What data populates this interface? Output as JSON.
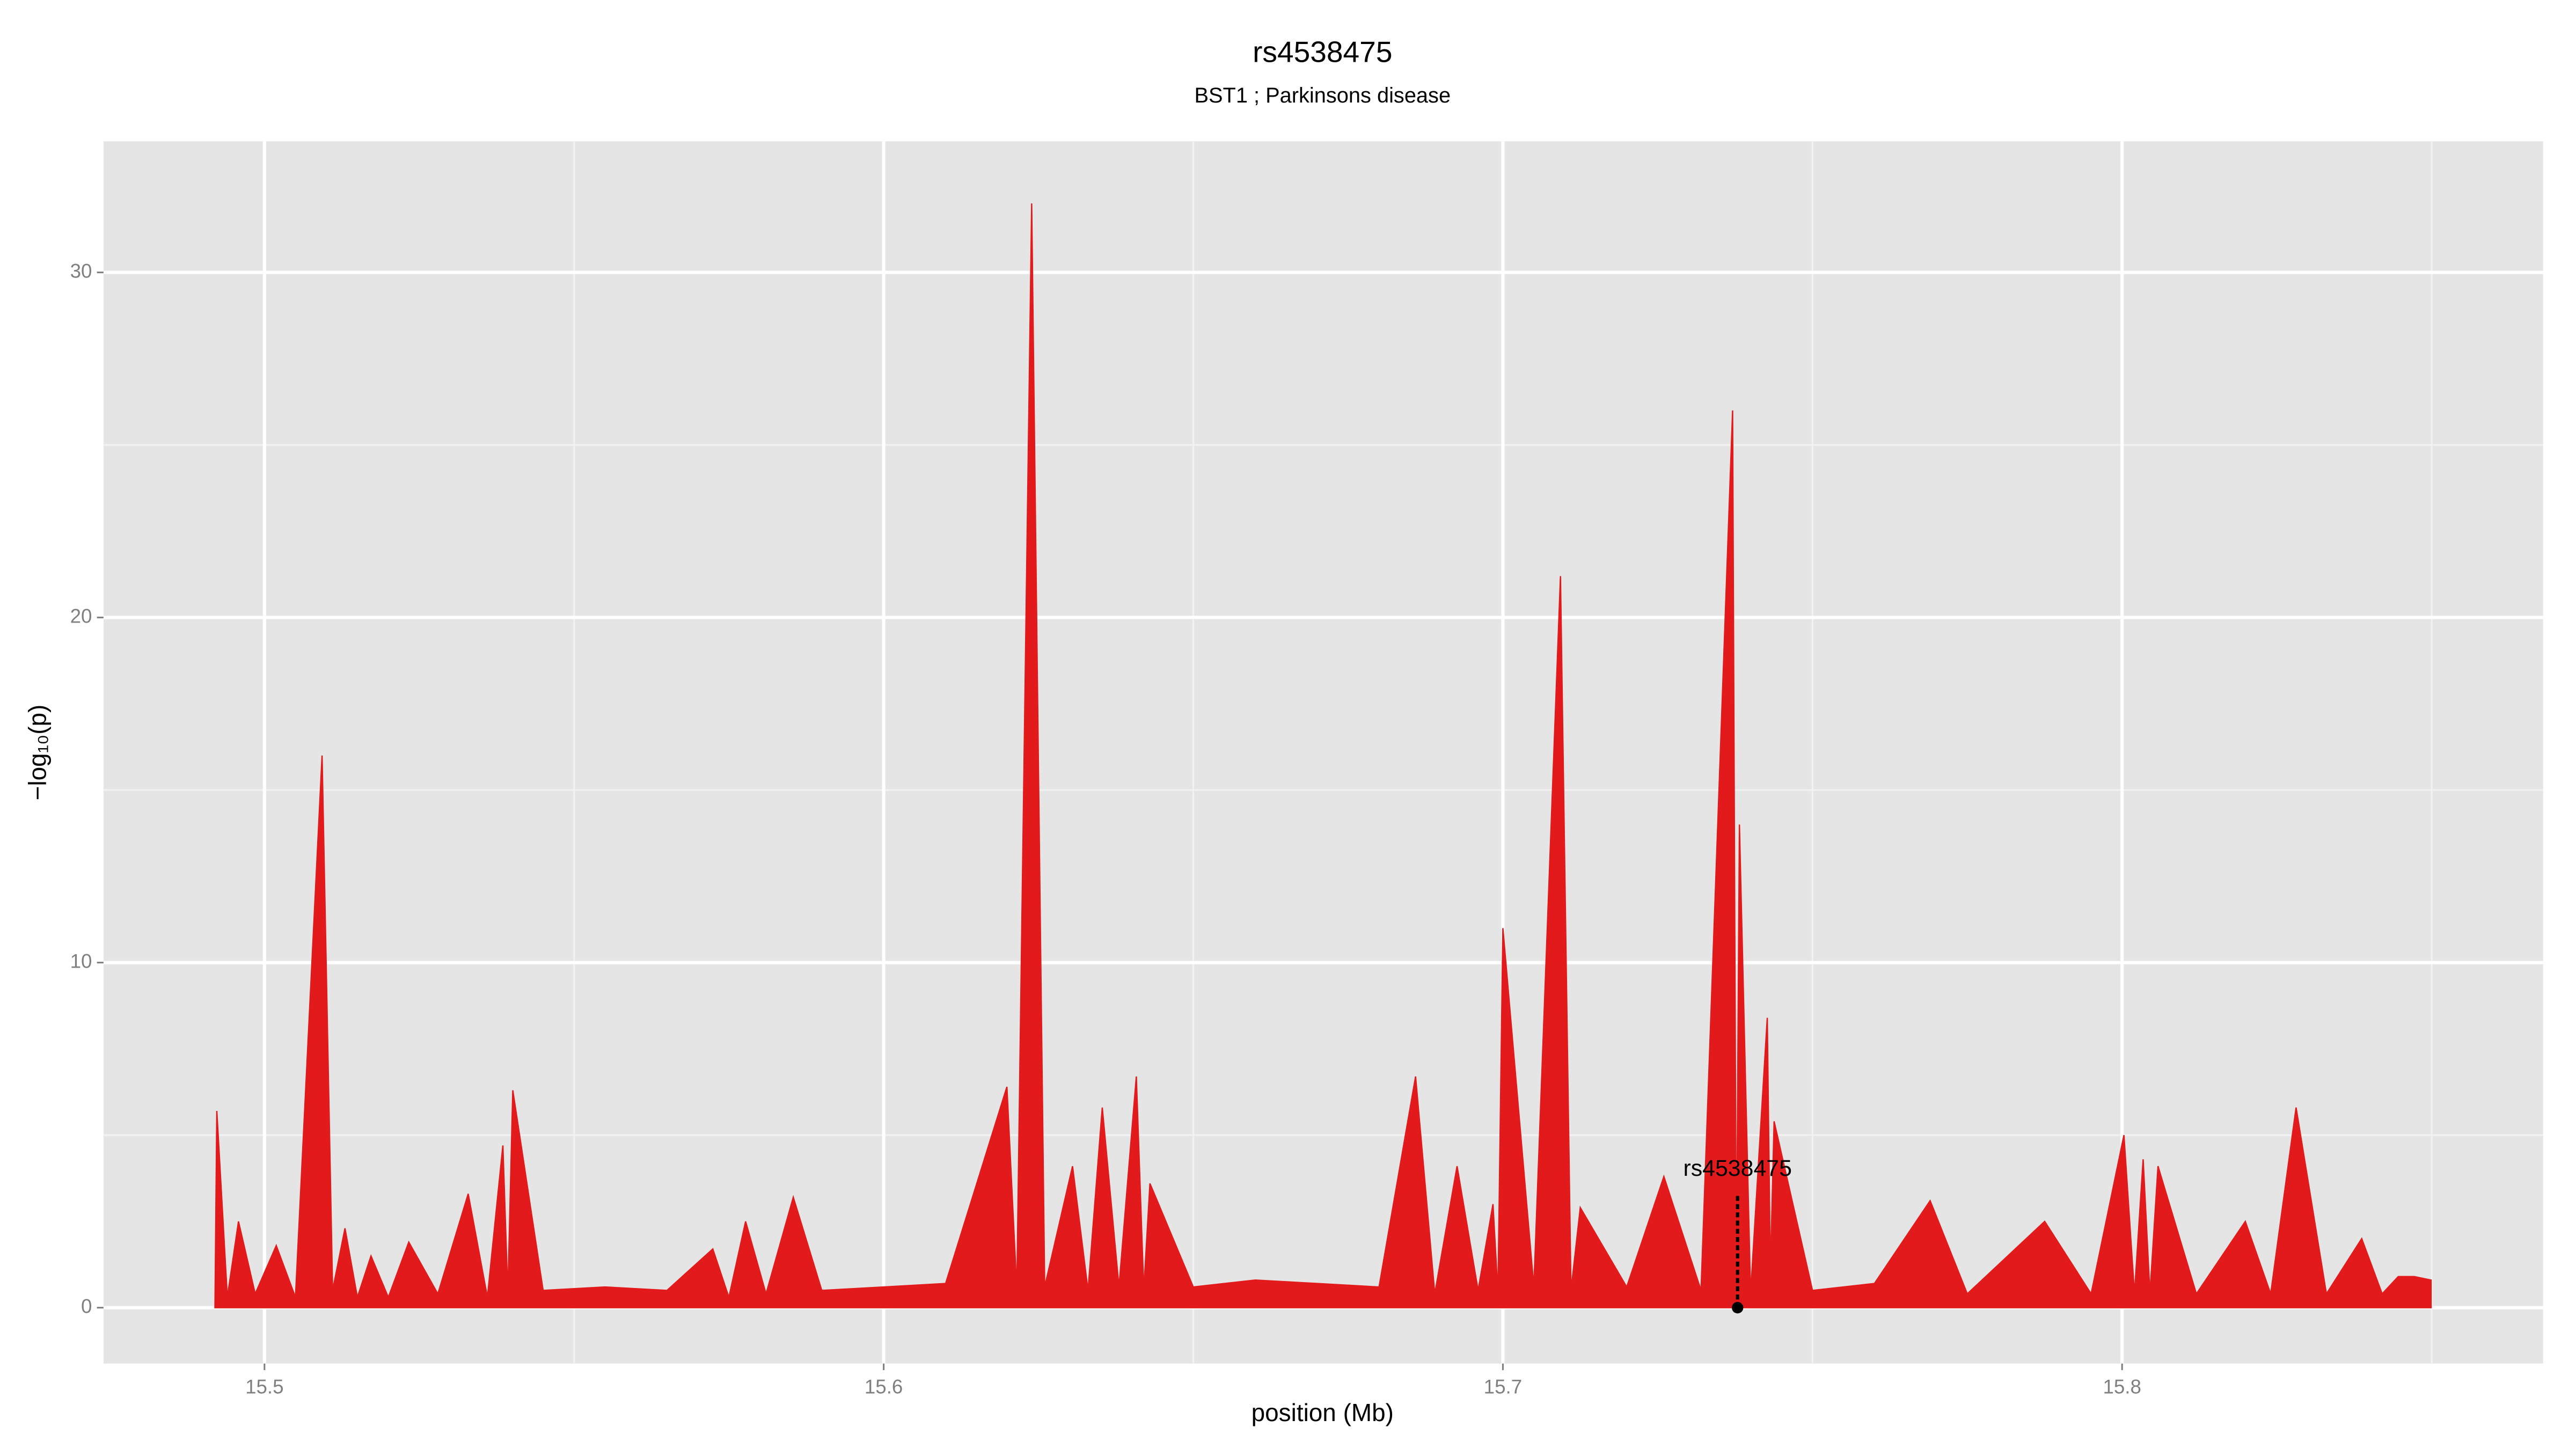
{
  "chart_data": {
    "type": "area",
    "title": "rs4538475",
    "subtitle": "BST1 ; Parkinsons disease",
    "xlabel": "position (Mb)",
    "ylabel": "−log₁₀(p)",
    "xlim": [
      15.474,
      15.868
    ],
    "ylim": [
      -1.62,
      33.8
    ],
    "xticks": [
      15.5,
      15.6,
      15.7,
      15.8
    ],
    "yticks": [
      0,
      10,
      20,
      30
    ],
    "x_minor_grid": [
      15.55,
      15.65,
      15.75,
      15.85
    ],
    "y_minor_grid": [
      5,
      15,
      25
    ],
    "grid": true,
    "background": "#e5e5e5",
    "x": [
      15.492,
      15.4923,
      15.494,
      15.4958,
      15.4985,
      15.5019,
      15.505,
      15.5093,
      15.511,
      15.513,
      15.515,
      15.5172,
      15.52,
      15.5233,
      15.528,
      15.5329,
      15.536,
      15.5385,
      15.5393,
      15.5401,
      15.545,
      15.555,
      15.565,
      15.5724,
      15.575,
      15.5777,
      15.581,
      15.5854,
      15.59,
      15.6,
      15.61,
      15.6199,
      15.6215,
      15.6239,
      15.626,
      15.6305,
      15.633,
      15.6353,
      15.638,
      15.6408,
      15.642,
      15.643,
      15.65,
      15.66,
      15.67,
      15.68,
      15.6859,
      15.689,
      15.6926,
      15.696,
      15.6984,
      15.6992,
      15.7,
      15.705,
      15.7093,
      15.711,
      15.7125,
      15.72,
      15.726,
      15.732,
      15.7371,
      15.7377,
      15.7382,
      15.74,
      15.7427,
      15.7432,
      15.7438,
      15.75,
      15.76,
      15.769,
      15.775,
      15.7875,
      15.795,
      15.8003,
      15.802,
      15.8034,
      15.8045,
      15.8058,
      15.812,
      15.8199,
      15.824,
      15.8281,
      15.833,
      15.8387,
      15.842,
      15.8446,
      15.8472,
      15.8499
    ],
    "series": [
      {
        "name": "-log10(p)",
        "color": "#e31a1c",
        "values": [
          0,
          5.7,
          0.3,
          2.5,
          0.4,
          1.8,
          0.3,
          16,
          0.5,
          2.3,
          0.3,
          1.5,
          0.3,
          1.9,
          0.4,
          3.3,
          0.3,
          4.7,
          0.4,
          6.3,
          0.5,
          0.6,
          0.5,
          1.7,
          0.3,
          2.5,
          0.4,
          3.2,
          0.5,
          0.6,
          0.7,
          6.4,
          0.5,
          32,
          0.6,
          4.1,
          0.5,
          5.8,
          0.6,
          6.7,
          0.5,
          3.6,
          0.6,
          0.8,
          0.7,
          0.6,
          6.7,
          0.4,
          4.1,
          0.5,
          3.0,
          0.4,
          11,
          0.6,
          21.2,
          0.5,
          2.9,
          0.6,
          3.8,
          0.5,
          26,
          0.5,
          14,
          0.4,
          8.4,
          1,
          5.4,
          0.5,
          0.7,
          3.1,
          0.4,
          2.5,
          0.4,
          5.0,
          0.4,
          4.3,
          0.4,
          4.1,
          0.4,
          2.5,
          0.4,
          5.8,
          0.4,
          2.0,
          0.4,
          0.9,
          0.9,
          0.8
        ]
      }
    ],
    "annotations": [
      {
        "text": "rs4538475",
        "x": 15.7379,
        "y": 0
      }
    ]
  }
}
